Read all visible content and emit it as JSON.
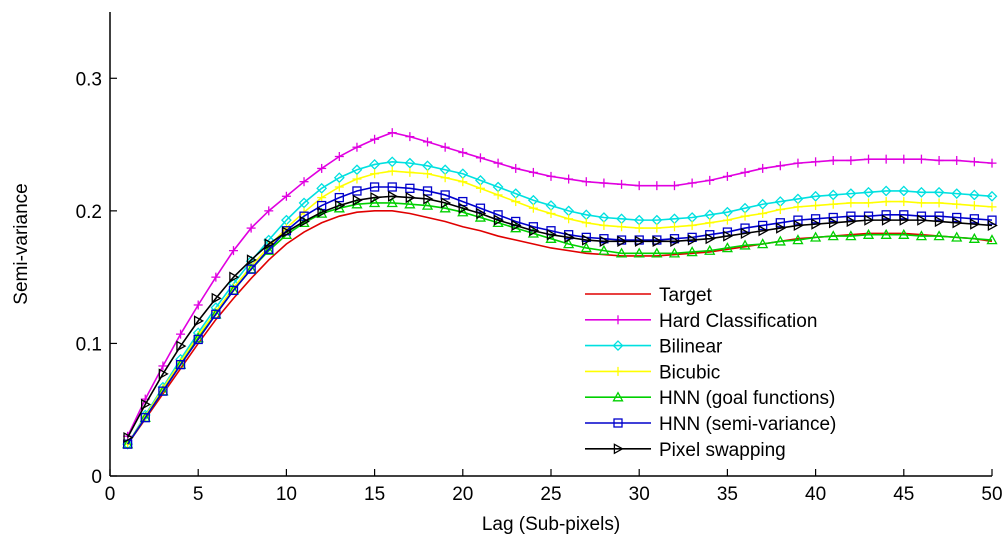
{
  "chart_data": {
    "type": "line",
    "xlabel": "Lag (Sub-pixels)",
    "ylabel": "Semi-variance",
    "xlim": [
      0,
      50
    ],
    "ylim": [
      0,
      0.35
    ],
    "x_ticks": [
      0,
      5,
      10,
      15,
      20,
      25,
      30,
      35,
      40,
      45,
      50
    ],
    "x_tick_labels": [
      "0",
      "5",
      "10",
      "15",
      "20",
      "25",
      "30",
      "35",
      "40",
      "45",
      "50"
    ],
    "y_ticks": [
      0,
      0.1,
      0.2,
      0.3
    ],
    "y_tick_labels": [
      "0",
      "0.1",
      "0.2",
      "0.3"
    ],
    "grid": false,
    "legend_position": "lower-right",
    "x": [
      1,
      2,
      3,
      4,
      5,
      6,
      7,
      8,
      9,
      10,
      11,
      12,
      13,
      14,
      15,
      16,
      17,
      18,
      19,
      20,
      21,
      22,
      23,
      24,
      25,
      26,
      27,
      28,
      29,
      30,
      31,
      32,
      33,
      34,
      35,
      36,
      37,
      38,
      39,
      40,
      41,
      42,
      43,
      44,
      45,
      46,
      47,
      48,
      49,
      50
    ],
    "series": [
      {
        "name": "Target",
        "color": "#e00000",
        "marker": "none",
        "values": [
          0.024,
          0.043,
          0.062,
          0.081,
          0.1,
          0.118,
          0.134,
          0.149,
          0.163,
          0.175,
          0.184,
          0.191,
          0.196,
          0.199,
          0.2,
          0.2,
          0.198,
          0.195,
          0.192,
          0.188,
          0.185,
          0.181,
          0.178,
          0.175,
          0.172,
          0.17,
          0.168,
          0.167,
          0.166,
          0.166,
          0.166,
          0.167,
          0.168,
          0.169,
          0.171,
          0.173,
          0.175,
          0.177,
          0.179,
          0.18,
          0.181,
          0.182,
          0.183,
          0.183,
          0.183,
          0.182,
          0.181,
          0.18,
          0.179,
          0.177
        ]
      },
      {
        "name": "Hard Classification",
        "color": "#e000e0",
        "marker": "plus",
        "values": [
          0.03,
          0.058,
          0.083,
          0.107,
          0.129,
          0.15,
          0.17,
          0.187,
          0.2,
          0.211,
          0.222,
          0.232,
          0.241,
          0.248,
          0.254,
          0.259,
          0.256,
          0.252,
          0.248,
          0.244,
          0.24,
          0.236,
          0.232,
          0.229,
          0.226,
          0.224,
          0.222,
          0.221,
          0.22,
          0.219,
          0.219,
          0.219,
          0.221,
          0.223,
          0.226,
          0.229,
          0.232,
          0.234,
          0.236,
          0.237,
          0.238,
          0.238,
          0.239,
          0.239,
          0.239,
          0.239,
          0.238,
          0.238,
          0.237,
          0.236
        ]
      },
      {
        "name": "Bilinear",
        "color": "#00e0e0",
        "marker": "diamond",
        "values": [
          0.024,
          0.046,
          0.067,
          0.088,
          0.108,
          0.127,
          0.145,
          0.162,
          0.178,
          0.193,
          0.206,
          0.217,
          0.225,
          0.231,
          0.235,
          0.237,
          0.236,
          0.234,
          0.231,
          0.228,
          0.223,
          0.218,
          0.213,
          0.208,
          0.204,
          0.2,
          0.197,
          0.195,
          0.194,
          0.193,
          0.193,
          0.194,
          0.195,
          0.197,
          0.199,
          0.202,
          0.205,
          0.207,
          0.209,
          0.211,
          0.212,
          0.213,
          0.214,
          0.215,
          0.215,
          0.214,
          0.214,
          0.213,
          0.212,
          0.211
        ]
      },
      {
        "name": "Bicubic",
        "color": "#ffff00",
        "marker": "plus",
        "values": [
          0.024,
          0.045,
          0.066,
          0.086,
          0.106,
          0.124,
          0.142,
          0.158,
          0.173,
          0.187,
          0.199,
          0.21,
          0.218,
          0.224,
          0.228,
          0.23,
          0.229,
          0.228,
          0.225,
          0.222,
          0.217,
          0.212,
          0.207,
          0.202,
          0.198,
          0.194,
          0.191,
          0.189,
          0.188,
          0.187,
          0.187,
          0.188,
          0.189,
          0.191,
          0.193,
          0.196,
          0.198,
          0.201,
          0.203,
          0.204,
          0.205,
          0.206,
          0.206,
          0.207,
          0.207,
          0.206,
          0.206,
          0.205,
          0.204,
          0.203
        ]
      },
      {
        "name": "HNN (goal functions)",
        "color": "#00d000",
        "marker": "triangle",
        "values": [
          0.024,
          0.044,
          0.064,
          0.084,
          0.104,
          0.122,
          0.14,
          0.156,
          0.17,
          0.182,
          0.191,
          0.198,
          0.202,
          0.205,
          0.206,
          0.206,
          0.205,
          0.204,
          0.202,
          0.199,
          0.195,
          0.191,
          0.187,
          0.183,
          0.179,
          0.175,
          0.172,
          0.17,
          0.168,
          0.168,
          0.168,
          0.168,
          0.169,
          0.17,
          0.172,
          0.174,
          0.175,
          0.177,
          0.178,
          0.18,
          0.181,
          0.181,
          0.182,
          0.182,
          0.182,
          0.181,
          0.181,
          0.18,
          0.179,
          0.178
        ]
      },
      {
        "name": "HNN (semi-variance)",
        "color": "#0000cc",
        "marker": "square",
        "values": [
          0.024,
          0.044,
          0.064,
          0.084,
          0.103,
          0.122,
          0.14,
          0.156,
          0.171,
          0.185,
          0.196,
          0.204,
          0.21,
          0.215,
          0.218,
          0.218,
          0.217,
          0.215,
          0.212,
          0.207,
          0.202,
          0.197,
          0.192,
          0.188,
          0.185,
          0.182,
          0.18,
          0.179,
          0.178,
          0.178,
          0.178,
          0.179,
          0.18,
          0.182,
          0.184,
          0.187,
          0.189,
          0.191,
          0.193,
          0.194,
          0.195,
          0.196,
          0.196,
          0.197,
          0.197,
          0.196,
          0.196,
          0.195,
          0.194,
          0.193
        ]
      },
      {
        "name": "Pixel swapping",
        "color": "#000000",
        "marker": "triangle-right",
        "values": [
          0.029,
          0.054,
          0.077,
          0.098,
          0.117,
          0.134,
          0.15,
          0.163,
          0.175,
          0.184,
          0.192,
          0.199,
          0.204,
          0.208,
          0.21,
          0.211,
          0.21,
          0.209,
          0.206,
          0.202,
          0.198,
          0.193,
          0.189,
          0.185,
          0.182,
          0.18,
          0.178,
          0.177,
          0.177,
          0.177,
          0.177,
          0.177,
          0.178,
          0.179,
          0.181,
          0.183,
          0.185,
          0.187,
          0.189,
          0.19,
          0.191,
          0.192,
          0.193,
          0.193,
          0.193,
          0.193,
          0.192,
          0.191,
          0.19,
          0.189
        ]
      }
    ]
  }
}
